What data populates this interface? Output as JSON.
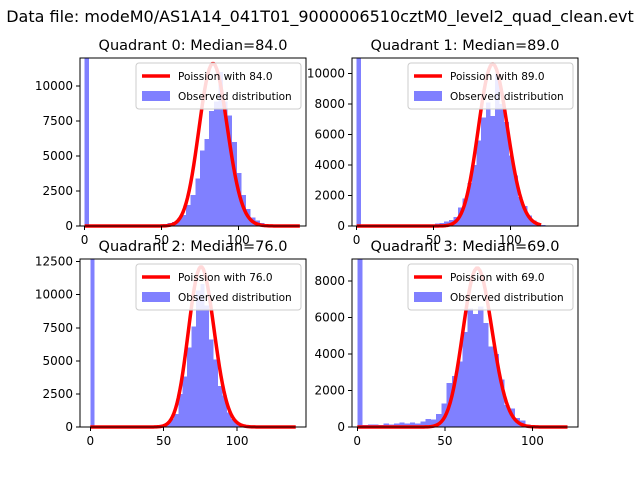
{
  "figure": {
    "suptitle": "Data file: modeM0/AS1A14_041T01_9000006510cztM0_level2_quad_clean.evt"
  },
  "colors": {
    "poisson_line": "#ff0000",
    "observed_bars": "#8080ff",
    "axes": "#000000",
    "legend_edge": "#cccccc"
  },
  "chart_data": [
    {
      "type": "bar",
      "title": "Quadrant 0: Median=84.0",
      "xlim": [
        -3,
        144
      ],
      "ylim": [
        0,
        12000
      ],
      "xticks": [
        0,
        50,
        100
      ],
      "yticks": [
        0,
        2500,
        5000,
        7500,
        10000
      ],
      "legend_position": "top-right",
      "legend": [
        "Poission with 84.0",
        "Observed distribution"
      ],
      "observed_bins": [
        [
          0,
          12000
        ],
        [
          3,
          0
        ],
        [
          6,
          0
        ],
        [
          9,
          0
        ],
        [
          12,
          0
        ],
        [
          15,
          0
        ],
        [
          18,
          0
        ],
        [
          21,
          0
        ],
        [
          24,
          0
        ],
        [
          27,
          0
        ],
        [
          30,
          0
        ],
        [
          33,
          0
        ],
        [
          36,
          0
        ],
        [
          39,
          0
        ],
        [
          42,
          0
        ],
        [
          45,
          50
        ],
        [
          48,
          100
        ],
        [
          51,
          150
        ],
        [
          54,
          200
        ],
        [
          57,
          300
        ],
        [
          60,
          550
        ],
        [
          63,
          800
        ],
        [
          66,
          1500
        ],
        [
          69,
          2200
        ],
        [
          72,
          3400
        ],
        [
          75,
          5400
        ],
        [
          78,
          6200
        ],
        [
          81,
          8200
        ],
        [
          84,
          8900
        ],
        [
          87,
          11000
        ],
        [
          90,
          8900
        ],
        [
          93,
          7900
        ],
        [
          96,
          6000
        ],
        [
          99,
          3800
        ],
        [
          102,
          2200
        ],
        [
          105,
          1200
        ],
        [
          108,
          600
        ],
        [
          111,
          400
        ],
        [
          114,
          200
        ],
        [
          117,
          100
        ],
        [
          120,
          50
        ],
        [
          123,
          0
        ]
      ],
      "poisson": {
        "name": "Poission with 84.0",
        "mean": 84.0,
        "scale": 11600,
        "range": [
          0,
          140
        ]
      }
    },
    {
      "type": "bar",
      "title": "Quadrant 1: Median=89.0",
      "xlim": [
        -3,
        144
      ],
      "ylim": [
        0,
        11000
      ],
      "xticks": [
        0,
        50,
        100
      ],
      "yticks": [
        0,
        2000,
        4000,
        6000,
        8000,
        10000
      ],
      "legend_position": "top-right",
      "legend": [
        "Poission with 89.0",
        "Observed distribution"
      ],
      "observed_bins": [
        [
          0,
          11000
        ],
        [
          3,
          0
        ],
        [
          6,
          0
        ],
        [
          9,
          0
        ],
        [
          12,
          0
        ],
        [
          15,
          0
        ],
        [
          18,
          0
        ],
        [
          21,
          0
        ],
        [
          24,
          0
        ],
        [
          27,
          0
        ],
        [
          30,
          0
        ],
        [
          33,
          0
        ],
        [
          36,
          0
        ],
        [
          39,
          0
        ],
        [
          42,
          0
        ],
        [
          45,
          50
        ],
        [
          48,
          100
        ],
        [
          51,
          150
        ],
        [
          54,
          200
        ],
        [
          57,
          300
        ],
        [
          60,
          400
        ],
        [
          63,
          600
        ],
        [
          66,
          1200
        ],
        [
          69,
          1800
        ],
        [
          72,
          2800
        ],
        [
          75,
          4000
        ],
        [
          78,
          5600
        ],
        [
          81,
          7100
        ],
        [
          84,
          8100
        ],
        [
          87,
          7200
        ],
        [
          90,
          10000
        ],
        [
          93,
          8000
        ],
        [
          96,
          6800
        ],
        [
          99,
          4600
        ],
        [
          102,
          3300
        ],
        [
          105,
          1900
        ],
        [
          108,
          1300
        ],
        [
          111,
          700
        ],
        [
          114,
          350
        ],
        [
          117,
          150
        ],
        [
          120,
          50
        ],
        [
          123,
          0
        ]
      ],
      "poisson": {
        "name": "Poission with 89.0",
        "mean": 89.0,
        "scale": 10600,
        "range": [
          0,
          120
        ]
      }
    },
    {
      "type": "bar",
      "title": "Quadrant 2: Median=76.0",
      "xlim": [
        -7,
        147
      ],
      "ylim": [
        0,
        12700
      ],
      "xticks": [
        0,
        50,
        100
      ],
      "yticks": [
        0,
        2500,
        5000,
        7500,
        10000,
        12500
      ],
      "legend_position": "top-right",
      "legend": [
        "Poission with 76.0",
        "Observed distribution"
      ],
      "observed_bins": [
        [
          0,
          12700
        ],
        [
          3,
          0
        ],
        [
          6,
          0
        ],
        [
          9,
          0
        ],
        [
          12,
          0
        ],
        [
          15,
          0
        ],
        [
          18,
          0
        ],
        [
          21,
          0
        ],
        [
          24,
          0
        ],
        [
          27,
          0
        ],
        [
          30,
          0
        ],
        [
          33,
          0
        ],
        [
          36,
          0
        ],
        [
          39,
          0
        ],
        [
          42,
          50
        ],
        [
          45,
          100
        ],
        [
          48,
          200
        ],
        [
          51,
          300
        ],
        [
          54,
          650
        ],
        [
          57,
          1000
        ],
        [
          60,
          2500
        ],
        [
          63,
          3800
        ],
        [
          66,
          6000
        ],
        [
          69,
          7600
        ],
        [
          72,
          10300
        ],
        [
          75,
          10800
        ],
        [
          78,
          9200
        ],
        [
          81,
          6600
        ],
        [
          84,
          5100
        ],
        [
          87,
          3100
        ],
        [
          90,
          2400
        ],
        [
          93,
          1100
        ],
        [
          96,
          600
        ],
        [
          99,
          350
        ],
        [
          102,
          150
        ],
        [
          105,
          50
        ],
        [
          108,
          0
        ]
      ],
      "poisson": {
        "name": "Poission with 76.0",
        "mean": 76.0,
        "scale": 12100,
        "range": [
          0,
          140
        ]
      }
    },
    {
      "type": "bar",
      "title": "Quadrant 3: Median=69.0",
      "xlim": [
        -3,
        126
      ],
      "ylim": [
        0,
        9200
      ],
      "xticks": [
        0,
        50,
        100
      ],
      "yticks": [
        0,
        2000,
        4000,
        6000,
        8000
      ],
      "legend_position": "top-right",
      "legend": [
        "Poission with 69.0",
        "Observed distribution"
      ],
      "observed_bins": [
        [
          0,
          9200
        ],
        [
          3,
          100
        ],
        [
          6,
          150
        ],
        [
          9,
          150
        ],
        [
          12,
          100
        ],
        [
          15,
          200
        ],
        [
          18,
          150
        ],
        [
          21,
          200
        ],
        [
          24,
          250
        ],
        [
          27,
          200
        ],
        [
          30,
          250
        ],
        [
          33,
          200
        ],
        [
          36,
          300
        ],
        [
          39,
          450
        ],
        [
          42,
          400
        ],
        [
          45,
          700
        ],
        [
          48,
          1300
        ],
        [
          51,
          2400
        ],
        [
          54,
          2800
        ],
        [
          57,
          3600
        ],
        [
          60,
          5200
        ],
        [
          63,
          6500
        ],
        [
          66,
          6200
        ],
        [
          69,
          6600
        ],
        [
          72,
          5700
        ],
        [
          75,
          4400
        ],
        [
          78,
          4000
        ],
        [
          81,
          2600
        ],
        [
          84,
          1200
        ],
        [
          87,
          1000
        ],
        [
          90,
          500
        ],
        [
          93,
          350
        ],
        [
          96,
          150
        ],
        [
          99,
          50
        ],
        [
          102,
          0
        ]
      ],
      "poisson": {
        "name": "Poission with 69.0",
        "mean": 69.0,
        "scale": 8700,
        "range": [
          0,
          120
        ]
      }
    }
  ]
}
